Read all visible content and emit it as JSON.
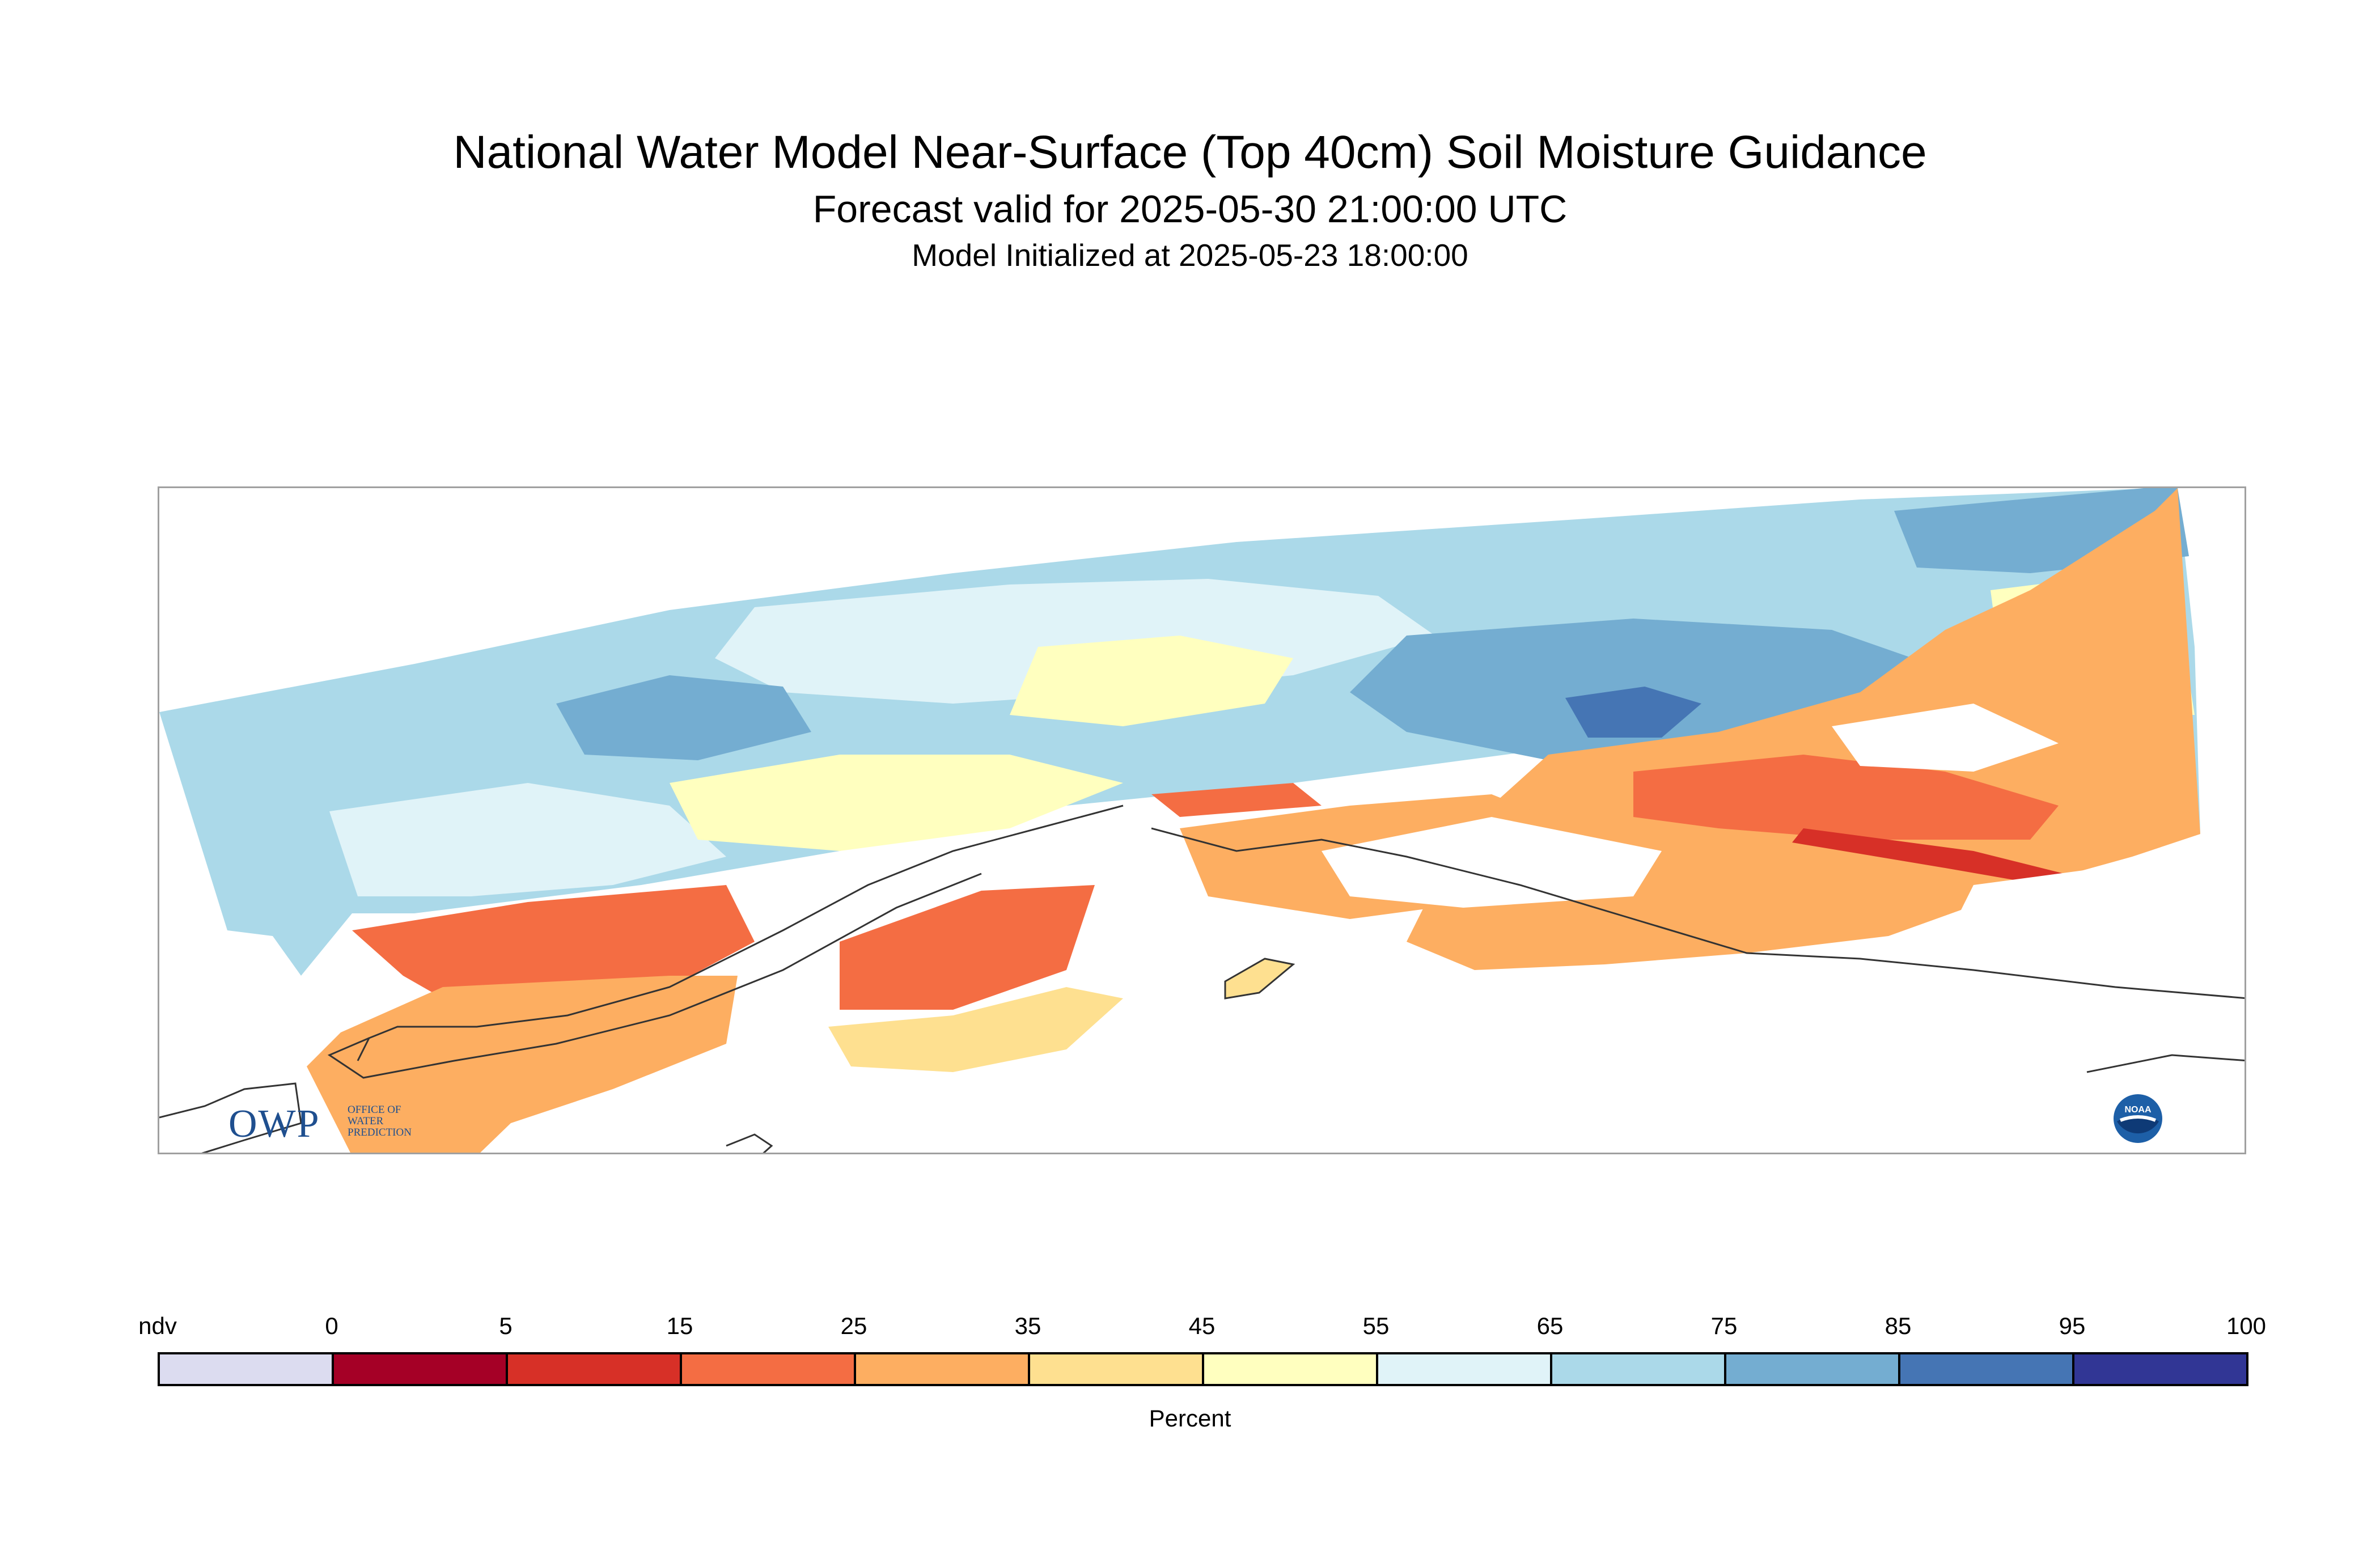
{
  "title": "National Water Model Near-Surface (Top 40cm) Soil Moisture Guidance",
  "subtitle": "Forecast valid for 2025-05-30 21:00:00 UTC",
  "init_line": "Model Initialized at 2025-05-23 18:00:00",
  "legend": {
    "label": "Percent",
    "ticks": [
      "ndv",
      "0",
      "5",
      "15",
      "25",
      "35",
      "45",
      "55",
      "65",
      "75",
      "85",
      "95",
      "100"
    ],
    "colors": [
      "#dcdcf0",
      "#a50026",
      "#d73027",
      "#f46d43",
      "#fdae61",
      "#fee090",
      "#ffffbf",
      "#e0f3f8",
      "#abd9e9",
      "#74add1",
      "#4575b4",
      "#313695"
    ]
  },
  "logos": {
    "owp": {
      "letters": "OWP",
      "line1": "OFFICE OF",
      "line2": "WATER",
      "line3": "PREDICTION"
    },
    "noaa": {
      "text": "NOAA"
    }
  },
  "map": {
    "region_icon": "alaska-map",
    "palette": {
      "water": "#ffffff",
      "coast": "#333333",
      "nodata": "#ffffff"
    }
  }
}
